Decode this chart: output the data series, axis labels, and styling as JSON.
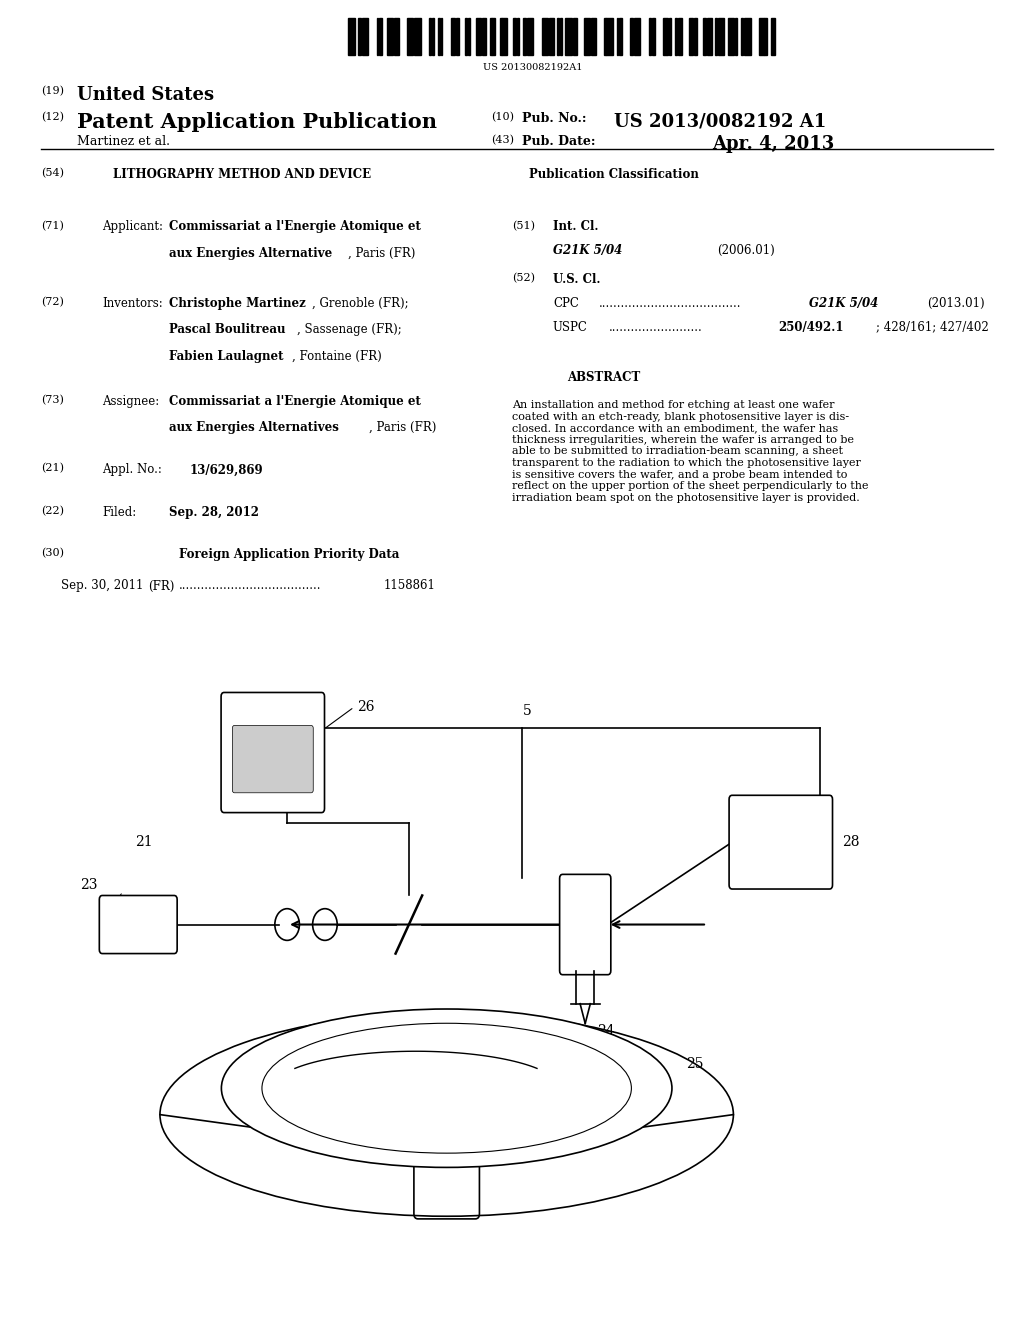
{
  "background_color": "#ffffff",
  "barcode_text": "US 20130082192A1",
  "header": {
    "number19": "(19)",
    "united_states": "United States",
    "number12": "(12)",
    "patent_app_pub": "Patent Application Publication",
    "number10": "(10)",
    "pub_no_label": "Pub. No.:",
    "pub_no_value": "US 2013/0082192 A1",
    "inventors": "Martinez et al.",
    "number43": "(43)",
    "pub_date_label": "Pub. Date:",
    "pub_date_value": "Apr. 4, 2013"
  },
  "left_column": {
    "item54_num": "(54)",
    "item54_text": "LITHOGRAPHY METHOD AND DEVICE",
    "item71_num": "(71)",
    "item71_label": "Applicant:",
    "item72_num": "(72)",
    "item72_label": "Inventors:",
    "item73_num": "(73)",
    "item73_label": "Assignee:",
    "item21_num": "(21)",
    "item21_label": "Appl. No.:",
    "item21_text": "13/629,869",
    "item22_num": "(22)",
    "item22_label": "Filed:",
    "item22_text": "Sep. 28, 2012",
    "item30_num": "(30)",
    "item30_text": "Foreign Application Priority Data",
    "foreign_date": "Sep. 30, 2011",
    "foreign_country": "(FR)",
    "foreign_number": "1158861"
  },
  "right_column": {
    "pub_class_title": "Publication Classification",
    "item51_num": "(51)",
    "item51_label": "Int. Cl.",
    "item51_code": "G21K 5/04",
    "item51_year": "(2006.01)",
    "item52_num": "(52)",
    "item52_label": "U.S. Cl.",
    "abstract_title": "ABSTRACT",
    "abstract_text": "An installation and method for etching at least one wafer\ncoated with an etch-ready, blank photosensitive layer is dis-\nclosed. In accordance with an embodiment, the wafer has\nthickness irregularities, wherein the wafer is arranged to be\nable to be submitted to irradiation-beam scanning, a sheet\ntransparent to the radiation to which the photosensitive layer\nis sensitive covers the wafer, and a probe beam intended to\nreflect on the upper portion of the sheet perpendicularly to the\nirradiation beam spot on the photosensitive layer is provided."
  }
}
